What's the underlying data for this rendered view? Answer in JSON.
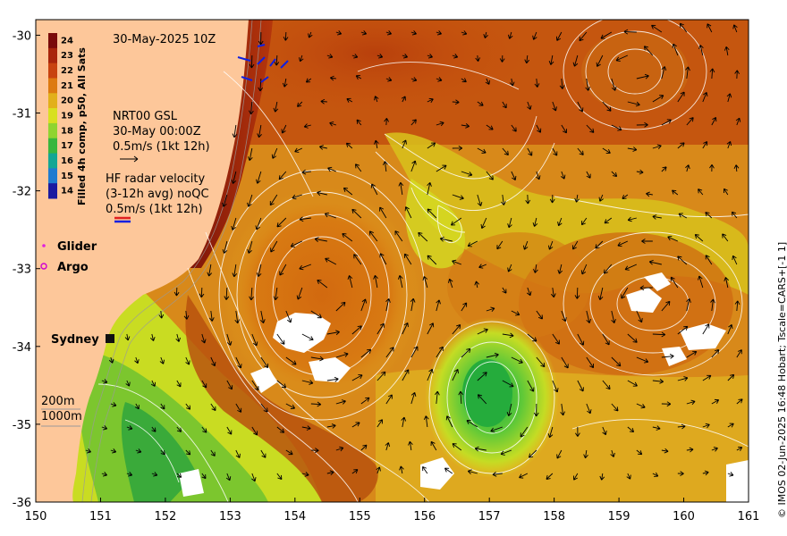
{
  "map": {
    "timestamp": "30-May-2025 10Z",
    "x_ticks": [
      "150",
      "151",
      "152",
      "153",
      "154",
      "155",
      "156",
      "157",
      "158",
      "159",
      "160",
      "161"
    ],
    "y_ticks": [
      "-30",
      "-31",
      "-32",
      "-33",
      "-34",
      "-35",
      "-36"
    ],
    "lon_range": [
      150,
      161
    ],
    "lat_range": [
      -36,
      -29.8
    ]
  },
  "colorbar": {
    "title": "Filled 4h comp, p50, All Sats",
    "labels": [
      "24",
      "23",
      "22",
      "21",
      "20",
      "19",
      "18",
      "17",
      "16",
      "15",
      "14"
    ],
    "colors": [
      "#7a0a0a",
      "#a8250b",
      "#c8430f",
      "#dd7a10",
      "#e2b01a",
      "#d8e020",
      "#8fd430",
      "#38b63e",
      "#13a694",
      "#1f7bd0",
      "#1a1aa0"
    ]
  },
  "legend": {
    "gsl_title": "NRT00 GSL",
    "gsl_time": "30-May 00:00Z",
    "gsl_scale": "0.5m/s (1kt 12h)",
    "hf_title": "HF radar velocity",
    "hf_avg": "(3-12h avg) noQC",
    "hf_scale": "0.5m/s (1kt 12h)",
    "glider": "Glider",
    "argo": "Argo",
    "depth_200": "200m",
    "depth_1000": "1000m"
  },
  "places": {
    "sydney": "Sydney"
  },
  "credit": "© IMOS 02-Jun-2025 16:48 Hobart; Tscale=CARS+[-1 1]",
  "colors": {
    "land": "#fdc79a",
    "contour": "#ffffff",
    "glider": "#e020e0",
    "argo": "#d000d0",
    "hf_red": "#e02020",
    "hf_blue": "#1020e0"
  }
}
